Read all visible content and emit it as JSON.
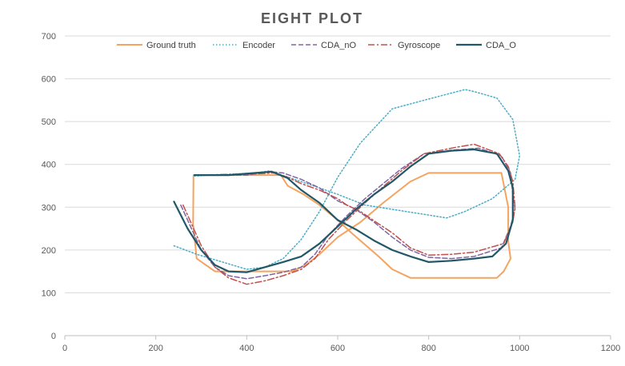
{
  "chart_data": {
    "type": "scatter",
    "title": "EIGHT PLOT",
    "xlabel": "",
    "ylabel": "",
    "xlim": [
      0,
      1200
    ],
    "ylim": [
      0,
      700
    ],
    "xticks": [
      0,
      200,
      400,
      600,
      800,
      1000,
      1200
    ],
    "yticks": [
      0,
      100,
      200,
      300,
      400,
      500,
      600,
      700
    ],
    "grid": "horizontal",
    "legend_position": "top",
    "series": [
      {
        "name": "Ground truth",
        "color": "#f4a460",
        "dash": "solid",
        "width": 2,
        "points": [
          [
            283,
            375
          ],
          [
            400,
            375
          ],
          [
            475,
            375
          ],
          [
            490,
            350
          ],
          [
            525,
            330
          ],
          [
            560,
            305
          ],
          [
            600,
            270
          ],
          [
            630,
            240
          ],
          [
            690,
            185
          ],
          [
            720,
            155
          ],
          [
            760,
            135
          ],
          [
            850,
            135
          ],
          [
            950,
            135
          ],
          [
            965,
            150
          ],
          [
            980,
            180
          ],
          [
            975,
            220
          ],
          [
            975,
            300
          ],
          [
            960,
            380
          ],
          [
            900,
            380
          ],
          [
            800,
            380
          ],
          [
            760,
            360
          ],
          [
            700,
            310
          ],
          [
            650,
            265
          ],
          [
            600,
            230
          ],
          [
            560,
            190
          ],
          [
            530,
            165
          ],
          [
            500,
            150
          ],
          [
            460,
            150
          ],
          [
            400,
            150
          ],
          [
            330,
            150
          ],
          [
            290,
            180
          ],
          [
            282,
            260
          ],
          [
            283,
            375
          ]
        ]
      },
      {
        "name": "Encoder",
        "color": "#4bacc6",
        "dash": "dotted",
        "width": 1.5,
        "points": [
          [
            240,
            210
          ],
          [
            290,
            190
          ],
          [
            400,
            155
          ],
          [
            440,
            160
          ],
          [
            480,
            180
          ],
          [
            520,
            225
          ],
          [
            560,
            290
          ],
          [
            600,
            370
          ],
          [
            650,
            450
          ],
          [
            720,
            530
          ],
          [
            790,
            550
          ],
          [
            880,
            575
          ],
          [
            900,
            570
          ],
          [
            950,
            555
          ],
          [
            985,
            505
          ],
          [
            1000,
            420
          ],
          [
            990,
            365
          ],
          [
            940,
            320
          ],
          [
            880,
            290
          ],
          [
            840,
            275
          ],
          [
            780,
            285
          ],
          [
            720,
            295
          ],
          [
            660,
            305
          ],
          [
            600,
            330
          ],
          [
            560,
            345
          ],
          [
            450,
            385
          ],
          [
            420,
            380
          ],
          [
            285,
            373
          ]
        ]
      },
      {
        "name": "CDA_nO",
        "color": "#8064a2",
        "dash": "dashed",
        "width": 1.5,
        "points": [
          [
            255,
            305
          ],
          [
            300,
            200
          ],
          [
            330,
            160
          ],
          [
            360,
            140
          ],
          [
            400,
            133
          ],
          [
            440,
            140
          ],
          [
            480,
            148
          ],
          [
            520,
            160
          ],
          [
            550,
            190
          ],
          [
            580,
            235
          ],
          [
            620,
            280
          ],
          [
            660,
            320
          ],
          [
            700,
            355
          ],
          [
            740,
            390
          ],
          [
            790,
            425
          ],
          [
            850,
            433
          ],
          [
            910,
            438
          ],
          [
            960,
            420
          ],
          [
            980,
            380
          ],
          [
            985,
            330
          ],
          [
            990,
            295
          ],
          [
            980,
            255
          ],
          [
            960,
            205
          ],
          [
            900,
            185
          ],
          [
            850,
            180
          ],
          [
            800,
            183
          ],
          [
            760,
            200
          ],
          [
            720,
            230
          ],
          [
            680,
            265
          ],
          [
            640,
            295
          ],
          [
            600,
            315
          ],
          [
            560,
            345
          ],
          [
            520,
            365
          ],
          [
            480,
            380
          ],
          [
            450,
            383
          ],
          [
            400,
            375
          ],
          [
            285,
            375
          ]
        ]
      },
      {
        "name": "Gyroscope",
        "color": "#c0504d",
        "dash": "dashdot",
        "width": 1.5,
        "points": [
          [
            260,
            305
          ],
          [
            300,
            210
          ],
          [
            330,
            160
          ],
          [
            360,
            135
          ],
          [
            400,
            120
          ],
          [
            440,
            128
          ],
          [
            480,
            140
          ],
          [
            520,
            155
          ],
          [
            550,
            180
          ],
          [
            580,
            225
          ],
          [
            620,
            270
          ],
          [
            660,
            310
          ],
          [
            700,
            348
          ],
          [
            740,
            385
          ],
          [
            790,
            425
          ],
          [
            860,
            440
          ],
          [
            900,
            447
          ],
          [
            955,
            425
          ],
          [
            975,
            395
          ],
          [
            985,
            360
          ],
          [
            990,
            300
          ],
          [
            985,
            265
          ],
          [
            965,
            215
          ],
          [
            900,
            195
          ],
          [
            850,
            190
          ],
          [
            800,
            188
          ],
          [
            760,
            205
          ],
          [
            720,
            240
          ],
          [
            680,
            268
          ],
          [
            650,
            290
          ],
          [
            620,
            305
          ],
          [
            600,
            320
          ],
          [
            560,
            340
          ],
          [
            520,
            355
          ],
          [
            490,
            370
          ],
          [
            460,
            380
          ],
          [
            420,
            378
          ],
          [
            285,
            375
          ]
        ]
      },
      {
        "name": "CDA_O",
        "color": "#215867",
        "dash": "solid",
        "width": 2.2,
        "points": [
          [
            240,
            313
          ],
          [
            270,
            250
          ],
          [
            300,
            200
          ],
          [
            330,
            165
          ],
          [
            360,
            150
          ],
          [
            400,
            148
          ],
          [
            440,
            160
          ],
          [
            480,
            172
          ],
          [
            520,
            185
          ],
          [
            560,
            215
          ],
          [
            600,
            255
          ],
          [
            640,
            295
          ],
          [
            680,
            330
          ],
          [
            720,
            360
          ],
          [
            760,
            395
          ],
          [
            800,
            425
          ],
          [
            850,
            432
          ],
          [
            900,
            435
          ],
          [
            950,
            425
          ],
          [
            975,
            385
          ],
          [
            985,
            345
          ],
          [
            985,
            270
          ],
          [
            970,
            215
          ],
          [
            940,
            185
          ],
          [
            900,
            180
          ],
          [
            850,
            175
          ],
          [
            800,
            172
          ],
          [
            760,
            185
          ],
          [
            720,
            200
          ],
          [
            680,
            222
          ],
          [
            640,
            248
          ],
          [
            600,
            270
          ],
          [
            560,
            310
          ],
          [
            520,
            340
          ],
          [
            490,
            368
          ],
          [
            455,
            383
          ],
          [
            420,
            380
          ],
          [
            360,
            375
          ],
          [
            285,
            375
          ]
        ]
      }
    ]
  }
}
